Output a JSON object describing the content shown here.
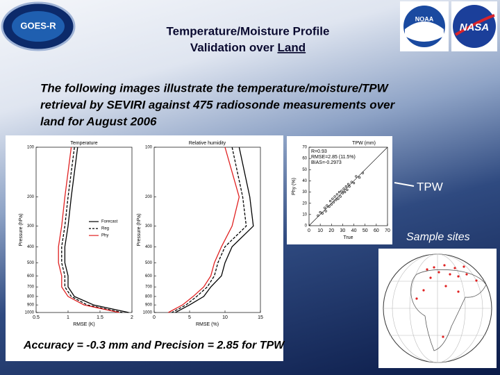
{
  "header": {
    "title_line1": "Temperature/Moisture Profile",
    "title_line2_prefix": "Validation over ",
    "title_line2_underlined": "Land",
    "logos": [
      "GOES-R",
      "NOAA",
      "NASA"
    ]
  },
  "body": {
    "intro_lines": [
      "The following images illustrate the temperature/moisture/TPW",
      "retrieval by SEVIRI against 475 radiosonde measurements over",
      "land for August 2006"
    ],
    "tpw_label": "TPW",
    "sites_label": "Sample sites",
    "accuracy": "Accuracy = -0.3 mm and Precision = 2.85 for TPW"
  },
  "chart_data": [
    {
      "type": "profile",
      "title": "Temperature",
      "x_label": "RMSE (K)",
      "y_label": "Pressure (hPa)",
      "levels": [
        100,
        200,
        300,
        400,
        500,
        600,
        700,
        800,
        900,
        1000
      ],
      "xlim": [
        0.5,
        2
      ],
      "xticks": [
        0.5,
        1,
        1.5,
        2
      ],
      "ylim": [
        100,
        1000
      ],
      "yticks": [
        100,
        200,
        300,
        400,
        500,
        600,
        700,
        800,
        900,
        1000
      ],
      "y_log": true,
      "legend": "right",
      "series": [
        {
          "name": "Forecast",
          "color": "#000000",
          "dash": false,
          "values": [
            1.15,
            1.05,
            1.0,
            0.95,
            0.95,
            1.0,
            1.0,
            1.1,
            1.4,
            1.95
          ]
        },
        {
          "name": "Reg",
          "color": "#000000",
          "dash": true,
          "values": [
            1.1,
            1.0,
            0.95,
            0.9,
            0.9,
            0.95,
            0.95,
            1.05,
            1.3,
            1.85
          ]
        },
        {
          "name": "Phy",
          "color": "#e02020",
          "dash": false,
          "values": [
            1.05,
            0.95,
            0.9,
            0.85,
            0.85,
            0.9,
            0.9,
            1.0,
            1.25,
            1.8
          ]
        }
      ]
    },
    {
      "type": "profile",
      "title": "Relative humidity",
      "x_label": "RMSE (%)",
      "y_label": "Pressure (hPa)",
      "levels": [
        100,
        200,
        300,
        400,
        500,
        600,
        700,
        800,
        900,
        1000
      ],
      "xlim": [
        0,
        15
      ],
      "xticks": [
        0,
        5,
        10,
        15
      ],
      "ylim": [
        100,
        1000
      ],
      "yticks": [
        100,
        200,
        300,
        400,
        500,
        600,
        700,
        800,
        900,
        1000
      ],
      "y_log": true,
      "series": [
        {
          "color": "#000000",
          "dash": false,
          "values": [
            12,
            13.5,
            14,
            11,
            10,
            9.5,
            8,
            7,
            5,
            3
          ]
        },
        {
          "color": "#000000",
          "dash": true,
          "values": [
            11,
            12.5,
            13,
            10,
            9,
            8.5,
            7.5,
            6,
            4.5,
            2.5
          ]
        },
        {
          "color": "#e02020",
          "dash": false,
          "values": [
            10,
            12,
            11,
            9.5,
            8.5,
            8,
            7,
            5.5,
            4,
            2
          ]
        }
      ]
    },
    {
      "type": "scatter",
      "title": "TPW (mm)",
      "x_label": "True",
      "y_label": "Phy (%)",
      "annotations": [
        "R=0.93",
        "RMSE=2.85 (11.5%)",
        "BIAS=-0.2973"
      ],
      "xlim": [
        0,
        70
      ],
      "ylim": [
        0,
        70
      ],
      "xticks": [
        0,
        10,
        20,
        30,
        40,
        50,
        60,
        70
      ],
      "yticks": [
        0,
        10,
        20,
        30,
        40,
        50,
        60,
        70
      ],
      "x": [
        8,
        10,
        12,
        14,
        15,
        16,
        18,
        19,
        20,
        21,
        22,
        23,
        24,
        25,
        26,
        27,
        28,
        29,
        30,
        31,
        32,
        33,
        34,
        35,
        36,
        38,
        40,
        42,
        45,
        48
      ],
      "values": [
        9,
        12,
        11,
        16,
        13,
        18,
        17,
        22,
        19,
        24,
        21,
        26,
        23,
        28,
        24,
        30,
        26,
        31,
        29,
        33,
        30,
        35,
        32,
        37,
        35,
        39,
        38,
        44,
        43,
        47
      ],
      "color": "#000000"
    }
  ]
}
